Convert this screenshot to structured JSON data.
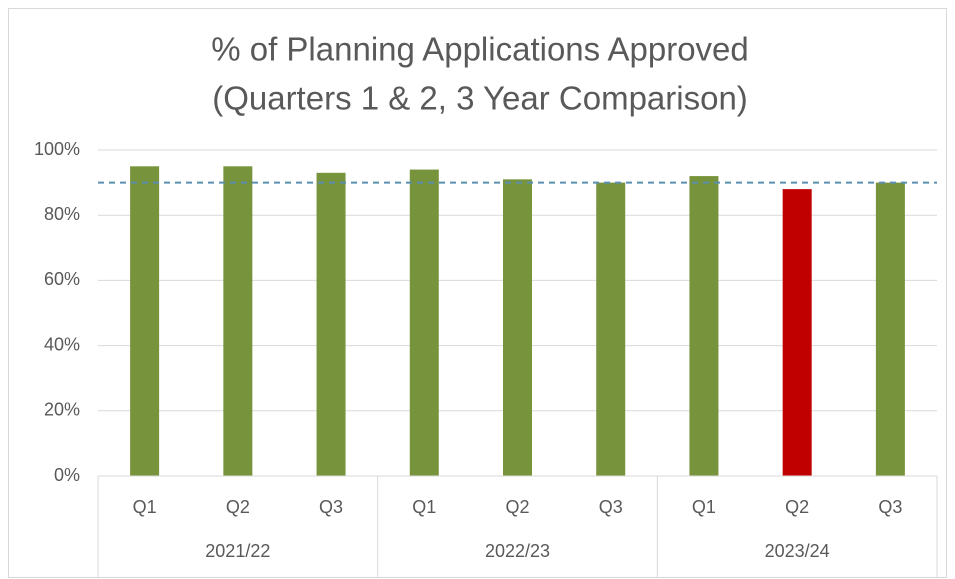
{
  "chart_data": {
    "type": "bar",
    "title": [
      "% of Planning Applications Approved",
      "(Quarters 1 & 2, 3 Year Comparison)"
    ],
    "categories": [
      "Q1",
      "Q2",
      "Q3",
      "Q1",
      "Q2",
      "Q3",
      "Q1",
      "Q2",
      "Q3"
    ],
    "groups": [
      "2021/22",
      "2022/23",
      "2023/24"
    ],
    "values": [
      95,
      95,
      93,
      94,
      91,
      90,
      92,
      88,
      90
    ],
    "colors": [
      "#77933c",
      "#77933c",
      "#77933c",
      "#77933c",
      "#77933c",
      "#77933c",
      "#77933c",
      "#c00000",
      "#77933c"
    ],
    "reference_line": {
      "value": 90,
      "color": "#5b8fb0",
      "dashed": true
    },
    "ylim": [
      0,
      100
    ],
    "yticks": [
      {
        "value": 0,
        "label": "0%"
      },
      {
        "value": 20,
        "label": "20%"
      },
      {
        "value": 40,
        "label": "40%"
      },
      {
        "value": 60,
        "label": "60%"
      },
      {
        "value": 80,
        "label": "80%"
      },
      {
        "value": 100,
        "label": "100%"
      }
    ],
    "grid": true
  }
}
